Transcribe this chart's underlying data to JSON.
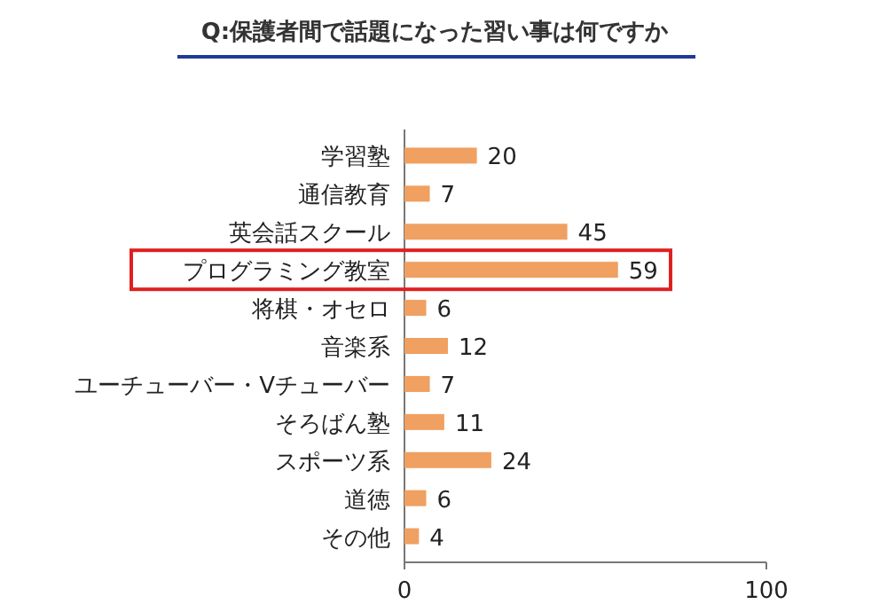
{
  "chart_data": {
    "type": "bar",
    "orientation": "horizontal",
    "title": "Q:保護者間で話題になった習い事は何ですか",
    "categories": [
      "学習塾",
      "通信教育",
      "英会話スクール",
      "プログラミング教室",
      "将棋・オセロ",
      "音楽系",
      "ユーチューバー・Vチューバー",
      "そろばん塾",
      "スポーツ系",
      "道徳",
      "その他"
    ],
    "values": [
      20,
      7,
      45,
      59,
      6,
      12,
      7,
      11,
      24,
      6,
      4
    ],
    "color": "#f0a060",
    "xlim": [
      0,
      100
    ],
    "xticks": [
      0,
      100
    ],
    "data_labels": true
  }
}
